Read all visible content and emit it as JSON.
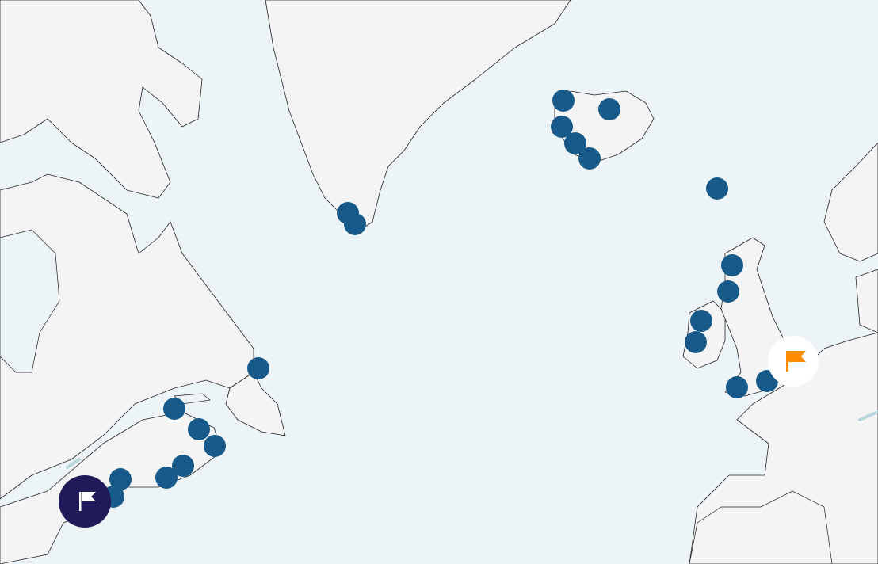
{
  "map": {
    "region": "North Atlantic",
    "colors": {
      "water": "#edf4f8",
      "land": "#f4f4f4",
      "coastline": "#222222",
      "marker": "#175a8a",
      "start_flag_bg": "#211a59",
      "start_flag_icon": "#ffffff",
      "end_flag_bg": "#ffffff",
      "end_flag_icon": "#ff8c00"
    },
    "markers_count": 21,
    "start_marker": {
      "icon": "flag-icon",
      "role": "origin"
    },
    "end_marker": {
      "icon": "flag-icon",
      "role": "destination"
    }
  }
}
